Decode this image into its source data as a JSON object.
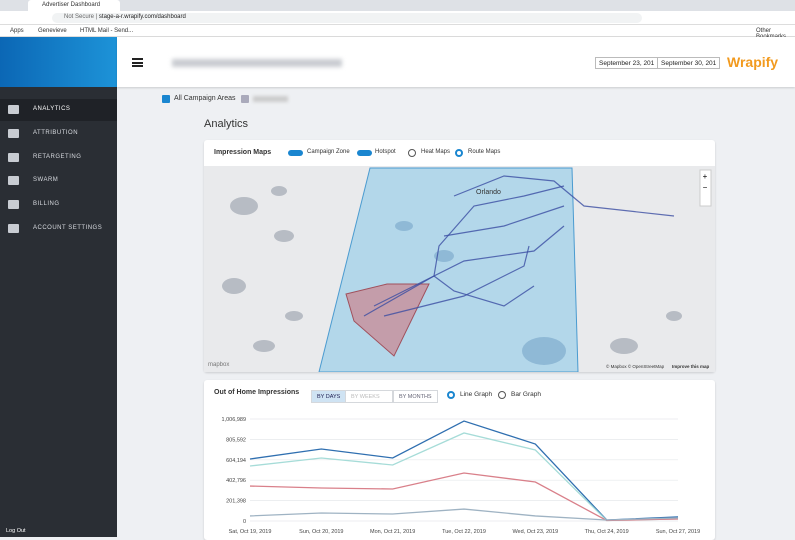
{
  "browser": {
    "tab_title": "Advertiser Dashboard",
    "security": "Not Secure",
    "url": "stage-a-r.wrapify.com/dashboard",
    "bookmarks": [
      "Apps",
      "Genevieve",
      "HTML Mail - Send..."
    ],
    "other_bookmarks": "Other Bookmarks"
  },
  "sidebar": {
    "items": [
      "ANALYTICS",
      "ATTRIBUTION",
      "RETARGETING",
      "SWARM",
      "BILLING",
      "ACCOUNT SETTINGS"
    ],
    "logout": "Log Out"
  },
  "header": {
    "date_start": "September 23, 201",
    "date_end": "September 30, 201",
    "logo": "Wrapify"
  },
  "filter": {
    "all_areas": "All Campaign Areas"
  },
  "page_title": "Analytics",
  "impression_maps": {
    "title": "Impression Maps",
    "toggles": [
      "Campaign Zone",
      "Hotspot"
    ],
    "radios": [
      "Heat Maps",
      "Route Maps"
    ],
    "city": "Orlando",
    "attribution": "© Mapbox © OpenStreetMap",
    "improve": "Improve this map",
    "logo": "mapbox",
    "zoom_in": "+",
    "zoom_out": "−"
  },
  "impressions_chart": {
    "type": "line",
    "title": "Out of Home Impressions",
    "periods": [
      "BY DAYS",
      "BY WEEKS",
      "BY MONTHS"
    ],
    "graph_types": [
      "Line Graph",
      "Bar Graph"
    ],
    "categories": [
      "Sat, Oct 19, 2019",
      "Sun, Oct 20, 2019",
      "Mon, Oct 21, 2019",
      "Tue, Oct 22, 2019",
      "Wed, Oct 23, 2019",
      "Thu, Oct 24, 2019",
      "Sun, Oct 27, 2019"
    ],
    "series": [
      {
        "color": "#2f6fb0",
        "values": [
          612000,
          711000,
          622000,
          987000,
          760000,
          10000,
          40000
        ]
      },
      {
        "color": "#a6dcd8",
        "values": [
          543000,
          622000,
          553000,
          869000,
          701000,
          5000,
          20000
        ]
      },
      {
        "color": "#d9808a",
        "values": [
          345000,
          326000,
          316000,
          474000,
          385000,
          5000,
          20000
        ]
      },
      {
        "color": "#9fb3c3",
        "values": [
          50000,
          79000,
          69000,
          118000,
          50000,
          10000,
          30000
        ]
      }
    ],
    "ylim": [
      0,
      1006989
    ],
    "yticks": [
      0,
      {
        "value": 201398,
        "label": "201,398"
      },
      {
        "value": 402796,
        "label": "402,796"
      },
      {
        "value": 604194,
        "label": "604,194"
      },
      {
        "value": 805592,
        "label": "805,592"
      },
      {
        "value": 1006989,
        "label": "1,006,989"
      }
    ],
    "grid": true
  }
}
